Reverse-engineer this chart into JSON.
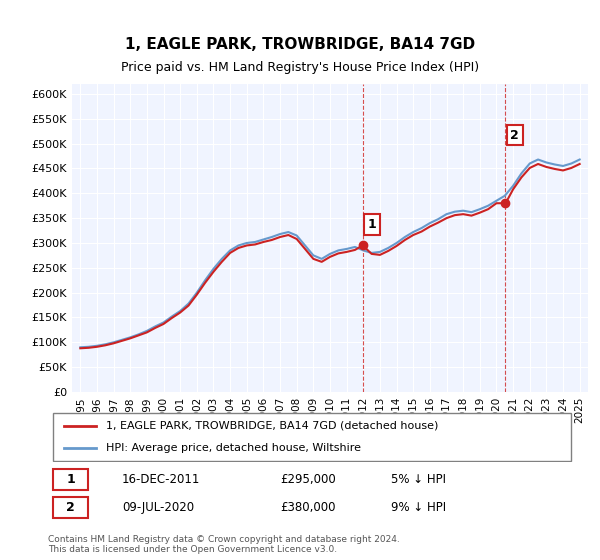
{
  "title": "1, EAGLE PARK, TROWBRIDGE, BA14 7GD",
  "subtitle": "Price paid vs. HM Land Registry's House Price Index (HPI)",
  "legend_label1": "1, EAGLE PARK, TROWBRIDGE, BA14 7GD (detached house)",
  "legend_label2": "HPI: Average price, detached house, Wiltshire",
  "annotation1_label": "1",
  "annotation1_date": "16-DEC-2011",
  "annotation1_price": "£295,000",
  "annotation1_hpi": "5% ↓ HPI",
  "annotation2_label": "2",
  "annotation2_date": "09-JUL-2020",
  "annotation2_price": "£380,000",
  "annotation2_hpi": "9% ↓ HPI",
  "footnote": "Contains HM Land Registry data © Crown copyright and database right 2024.\nThis data is licensed under the Open Government Licence v3.0.",
  "hpi_color": "#6699cc",
  "price_color": "#cc2222",
  "marker1_color": "#cc2222",
  "marker2_color": "#cc2222",
  "vline_color": "#cc2222",
  "ylim_min": 0,
  "ylim_max": 620000,
  "bg_color": "#f0f4ff",
  "plot_bg": "#f0f4ff"
}
